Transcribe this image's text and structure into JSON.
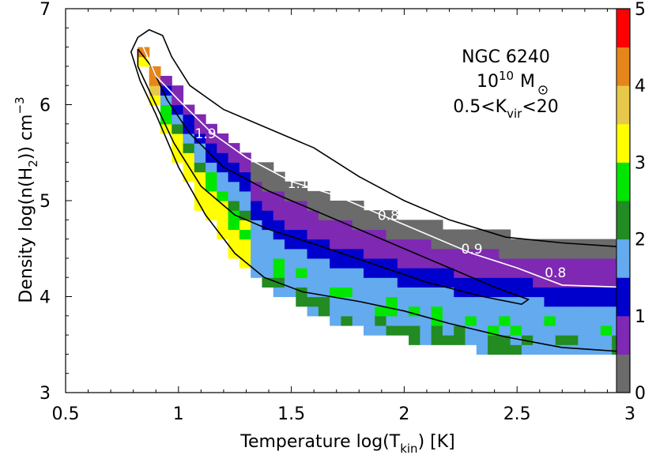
{
  "chart_data": {
    "type": "heatmap",
    "xlabel": {
      "prefix": "Temperature log(T",
      "sub": "kin",
      "suffix": ")  [K]"
    },
    "ylabel": {
      "prefix": "Density  log(n(H",
      "sub": "2",
      "suffix": "))  cm",
      "sup": "−3"
    },
    "xlim": [
      0.5,
      3.0
    ],
    "ylim": [
      3.0,
      7.0
    ],
    "x_ticks": [
      "0.5",
      "1",
      "1.5",
      "2",
      "2.5",
      "3"
    ],
    "y_ticks": [
      "3",
      "4",
      "5",
      "6",
      "7"
    ],
    "annotation": {
      "line1": "NGC 6240",
      "line2_base": "10",
      "line2_exp": "10",
      "line2_unit": "M",
      "line3_prefix": "0.5<K",
      "line3_sub": "vir",
      "line3_suffix": "<20"
    },
    "colorbar": {
      "ticks": [
        "0",
        "1",
        "2",
        "3",
        "4",
        "5"
      ],
      "range": [
        0,
        5
      ],
      "levels": [
        "#6b6b6b",
        "#7f28b4",
        "#0000cd",
        "#63aaee",
        "#228b22",
        "#00e600",
        "#ffff00",
        "#e8c84a",
        "#e6861a",
        "#ff0000"
      ]
    },
    "heatmap_colors": {
      "grey": "#6b6b6b",
      "purple": "#7f28b4",
      "blue": "#0000cd",
      "lightblue": "#63aaee",
      "darkgreen": "#228b22",
      "green": "#00e600",
      "yellow": "#ffff00",
      "gold": "#e8c84a",
      "orange": "#e6861a",
      "red": "#ff0000"
    },
    "contour_labels": [
      {
        "text": "1.9",
        "x": 1.12,
        "y": 5.65
      },
      {
        "text": "1.1",
        "x": 1.53,
        "y": 5.13
      },
      {
        "text": "0.8",
        "x": 1.93,
        "y": 4.8
      },
      {
        "text": "0.9",
        "x": 2.3,
        "y": 4.45
      },
      {
        "text": "0.8",
        "x": 2.67,
        "y": 4.2
      }
    ]
  }
}
